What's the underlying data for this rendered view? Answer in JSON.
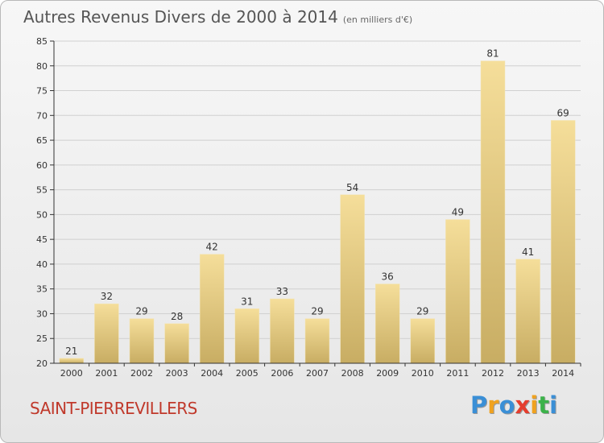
{
  "title": "Autres Revenus Divers de 2000 à 2014",
  "subtitle": "(en milliers d'€)",
  "commune": "SAINT-PIERREVILLERS",
  "logo": {
    "text": "Proxiti",
    "letters": [
      "P",
      "r",
      "o",
      "x",
      "i",
      "t",
      "i"
    ],
    "colors": [
      "#3a8fd6",
      "#f0a21f",
      "#3a8fd6",
      "#e53e2e",
      "#f0a21f",
      "#3cb24a",
      "#3a8fd6"
    ]
  },
  "colors": {
    "bar_light": "#f5de9a",
    "bar_dark": "#c8ad63",
    "axis": "#333333",
    "grid": "#d0d0d0",
    "commune": "#c0392b"
  },
  "chart_data": {
    "type": "bar",
    "title": "Autres Revenus Divers de 2000 à 2014",
    "subtitle": "(en milliers d'€)",
    "xlabel": "",
    "ylabel": "",
    "ylim": [
      20,
      85
    ],
    "yticks": [
      20,
      25,
      30,
      35,
      40,
      45,
      50,
      55,
      60,
      65,
      70,
      75,
      80,
      85
    ],
    "grid": true,
    "categories": [
      "2000",
      "2001",
      "2002",
      "2003",
      "2004",
      "2005",
      "2006",
      "2007",
      "2008",
      "2009",
      "2010",
      "2011",
      "2012",
      "2013",
      "2014"
    ],
    "values": [
      21,
      32,
      29,
      28,
      42,
      31,
      33,
      29,
      54,
      36,
      29,
      49,
      81,
      41,
      69
    ]
  }
}
